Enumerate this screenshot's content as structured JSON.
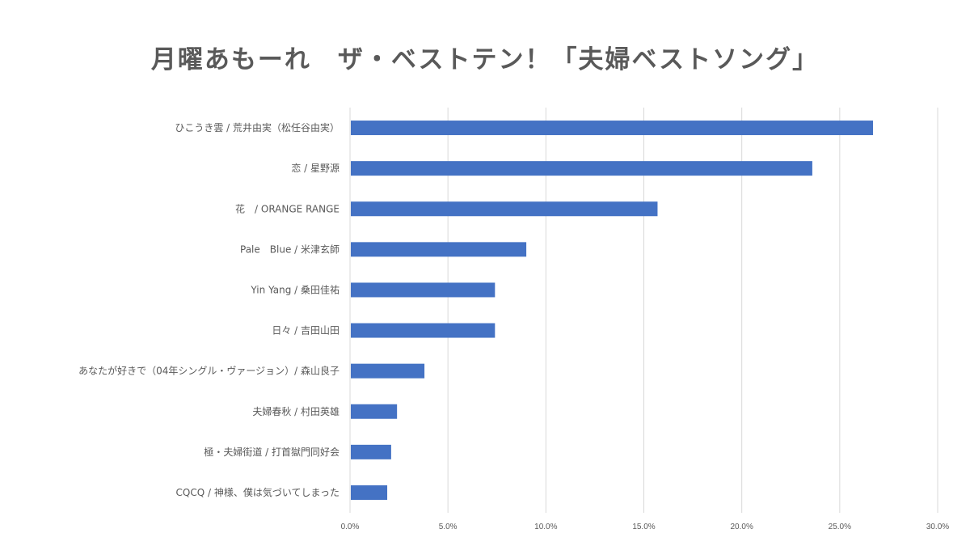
{
  "chart_data": {
    "type": "bar",
    "orientation": "horizontal",
    "title": "月曜あもーれ　ザ・ベストテン！「夫婦ベストソング」",
    "categories": [
      "ひこうき雲 / 荒井由実（松任谷由実）",
      "恋 / 星野源",
      "花　/ ORANGE RANGE",
      "Pale　Blue / 米津玄師",
      "Yin Yang / 桑田佳祐",
      "日々 / 吉田山田",
      "あなたが好きで（04年シングル・ヴァージョン）/ 森山良子",
      "夫婦春秋 / 村田英雄",
      "極・夫婦街道 / 打首獄門同好会",
      "CQCQ / 神様、僕は気づいてしまった"
    ],
    "values": [
      26.7,
      23.6,
      15.7,
      9.0,
      7.4,
      7.4,
      3.8,
      2.4,
      2.1,
      1.9
    ],
    "value_unit": "percent",
    "xlim": [
      0,
      30
    ],
    "xticks": [
      "0.0%",
      "5.0%",
      "10.0%",
      "15.0%",
      "20.0%",
      "25.0%",
      "30.0%"
    ],
    "grid": true,
    "legend": "none",
    "bar_color": "#4472C4",
    "grid_color": "#D9D9D9",
    "text_color": "#595959"
  }
}
